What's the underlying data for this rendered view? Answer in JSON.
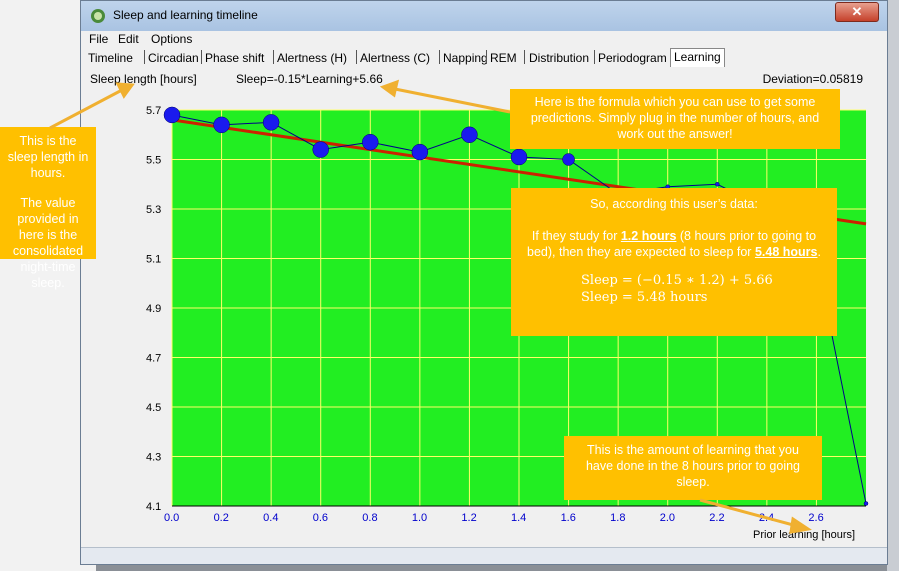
{
  "window": {
    "title": "Sleep and learning timeline",
    "close_glyph": "✕"
  },
  "menu": [
    "File",
    "Edit",
    "Options"
  ],
  "tabs": [
    "Timeline",
    "Circadian",
    "Phase shift",
    "Alertness (H)",
    "Alertness (C)",
    "Napping",
    "REM",
    "Distribution",
    "Periodogram",
    "Learning"
  ],
  "active_tab": "Learning",
  "info": {
    "y_axis_label": "Sleep length [hours]",
    "formula": "Sleep=-0.15*Learning+5.66",
    "deviation": "Deviation=0.05819"
  },
  "chart_data": {
    "type": "scatter",
    "xlabel": "Prior learning [hours]",
    "ylabel": "Sleep length [hours]",
    "xlim": [
      0,
      2.8
    ],
    "ylim": [
      4.1,
      5.7
    ],
    "x_ticks": [
      "0.0",
      "0.2",
      "0.4",
      "0.6",
      "0.8",
      "1.0",
      "1.2",
      "1.4",
      "1.6",
      "1.8",
      "2.0",
      "2.2",
      "2.4",
      "2.6"
    ],
    "y_ticks": [
      "4.1",
      "4.3",
      "4.5",
      "4.7",
      "4.9",
      "5.1",
      "5.3",
      "5.5",
      "5.7"
    ],
    "series": [
      {
        "x": [
          0.0,
          0.2,
          0.4,
          0.6,
          0.8,
          1.0,
          1.2,
          1.4,
          1.6,
          1.8,
          2.0,
          2.2,
          2.4,
          2.6,
          2.8
        ],
        "y": [
          5.68,
          5.64,
          5.65,
          5.54,
          5.57,
          5.53,
          5.6,
          5.51,
          5.5,
          5.36,
          5.39,
          5.4,
          5.3,
          5.1,
          4.11
        ]
      }
    ],
    "marker_size_hint": "large circles for left points, small for right",
    "regression": {
      "slope": -0.15,
      "intercept": 5.66
    },
    "plot_background": "#22ee22",
    "grid": true,
    "grid_color": "#ffff66",
    "line_color": "#00008b",
    "regression_color": "#cc2200",
    "marker_color": "#1a1aee"
  },
  "annotations": {
    "sleep_length": [
      "This is the sleep length in hours.",
      "The value provided in here is the consolidated night-time sleep."
    ],
    "formula_note": "Here is the formula which you can use to get some predictions. Simply plug in the number of hours, and work out the answer!",
    "predict_title": "So, according this user’s data:",
    "predict_pre": "If they study for ",
    "predict_hours": "1.2 hours",
    "predict_mid": " (8 hours prior to going to bed), then they are expected to sleep for ",
    "predict_sleep": "5.48 hours",
    "predict_end": ".",
    "eq1": "Sleep = (−0.15 ∗ 1.2) + 5.66",
    "eq2": "Sleep = 5.48 hours",
    "learning_note": "This is the amount of learning that you have done in the 8 hours prior to going sleep."
  },
  "colors": {
    "callout": "#ffc000",
    "arrow": "#f0b030"
  }
}
